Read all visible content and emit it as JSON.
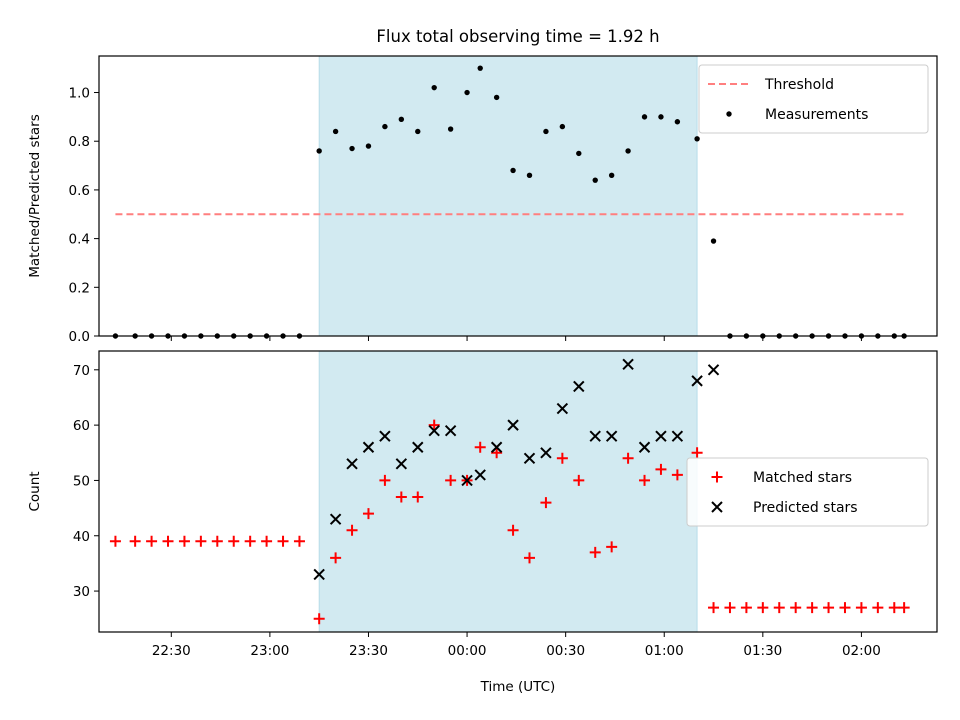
{
  "figure": {
    "title": "Flux total observing time = 1.92 h",
    "xlabel": "Time (UTC)"
  },
  "chart_data": [
    {
      "type": "scatter",
      "title": "Flux total observing time = 1.92 h",
      "xlabel": "",
      "ylabel": "Matched/Predicted stars",
      "xlim": [
        "22:08",
        "02:23"
      ],
      "ylim": [
        0,
        1.15
      ],
      "x_tick_labels": [
        "22:30",
        "23:00",
        "23:30",
        "00:00",
        "00:30",
        "01:00",
        "01:30",
        "02:00"
      ],
      "y_ticks": [
        0.0,
        0.2,
        0.4,
        0.6,
        0.8,
        1.0
      ],
      "y_tick_labels": [
        "0.0",
        "0.2",
        "0.4",
        "0.6",
        "0.8",
        "1.0"
      ],
      "highlight_span": {
        "x_start": "23:15",
        "x_end": "01:10",
        "color": "#add8e6"
      },
      "threshold": {
        "name": "Threshold",
        "value": 0.5,
        "x_start": "22:13",
        "x_end": "02:13",
        "color": "#ff7f7f",
        "style": "dashed"
      },
      "legend_location": "top-right",
      "legend": [
        {
          "label": "Threshold",
          "marker": "dashed-line",
          "color": "#ff7f7f"
        },
        {
          "label": "Measurements",
          "marker": "dot",
          "color": "#000000"
        }
      ],
      "series": [
        {
          "name": "Measurements",
          "marker": "dot",
          "color": "#000000",
          "points": [
            [
              "22:13",
              0
            ],
            [
              "22:19",
              0
            ],
            [
              "22:24",
              0
            ],
            [
              "22:29",
              0
            ],
            [
              "22:34",
              0
            ],
            [
              "22:39",
              0
            ],
            [
              "22:44",
              0
            ],
            [
              "22:49",
              0
            ],
            [
              "22:54",
              0
            ],
            [
              "22:59",
              0
            ],
            [
              "23:04",
              0
            ],
            [
              "23:09",
              0
            ],
            [
              "23:15",
              0.76
            ],
            [
              "23:20",
              0.84
            ],
            [
              "23:25",
              0.77
            ],
            [
              "23:30",
              0.78
            ],
            [
              "23:35",
              0.86
            ],
            [
              "23:40",
              0.89
            ],
            [
              "23:45",
              0.84
            ],
            [
              "23:50",
              1.02
            ],
            [
              "23:55",
              0.85
            ],
            [
              "00:00",
              1.0
            ],
            [
              "00:04",
              1.1
            ],
            [
              "00:09",
              0.98
            ],
            [
              "00:14",
              0.68
            ],
            [
              "00:19",
              0.66
            ],
            [
              "00:24",
              0.84
            ],
            [
              "00:29",
              0.86
            ],
            [
              "00:34",
              0.75
            ],
            [
              "00:39",
              0.64
            ],
            [
              "00:44",
              0.66
            ],
            [
              "00:49",
              0.76
            ],
            [
              "00:54",
              0.9
            ],
            [
              "00:59",
              0.9
            ],
            [
              "01:04",
              0.88
            ],
            [
              "01:10",
              0.81
            ],
            [
              "01:15",
              0.39
            ],
            [
              "01:20",
              0
            ],
            [
              "01:25",
              0
            ],
            [
              "01:30",
              0
            ],
            [
              "01:35",
              0
            ],
            [
              "01:40",
              0
            ],
            [
              "01:45",
              0
            ],
            [
              "01:50",
              0
            ],
            [
              "01:55",
              0
            ],
            [
              "02:00",
              0
            ],
            [
              "02:05",
              0
            ],
            [
              "02:10",
              0
            ],
            [
              "02:13",
              0
            ]
          ]
        }
      ]
    },
    {
      "type": "scatter",
      "title": "",
      "xlabel": "Time (UTC)",
      "ylabel": "Count",
      "xlim": [
        "22:08",
        "02:23"
      ],
      "ylim": [
        22.6,
        73.4
      ],
      "x_tick_labels": [
        "22:30",
        "23:00",
        "23:30",
        "00:00",
        "00:30",
        "01:00",
        "01:30",
        "02:00"
      ],
      "y_ticks": [
        30,
        40,
        50,
        60,
        70
      ],
      "y_tick_labels": [
        "30",
        "40",
        "50",
        "60",
        "70"
      ],
      "highlight_span": {
        "x_start": "23:15",
        "x_end": "01:10",
        "color": "#add8e6"
      },
      "legend_location": "center-right",
      "legend": [
        {
          "label": "Matched stars",
          "marker": "plus",
          "color": "#ff0000"
        },
        {
          "label": "Predicted stars",
          "marker": "x",
          "color": "#000000"
        }
      ],
      "series": [
        {
          "name": "Matched stars",
          "marker": "plus",
          "color": "#ff0000",
          "points": [
            [
              "22:13",
              39
            ],
            [
              "22:19",
              39
            ],
            [
              "22:24",
              39
            ],
            [
              "22:29",
              39
            ],
            [
              "22:34",
              39
            ],
            [
              "22:39",
              39
            ],
            [
              "22:44",
              39
            ],
            [
              "22:49",
              39
            ],
            [
              "22:54",
              39
            ],
            [
              "22:59",
              39
            ],
            [
              "23:04",
              39
            ],
            [
              "23:09",
              39
            ],
            [
              "23:15",
              25
            ],
            [
              "23:20",
              36
            ],
            [
              "23:25",
              41
            ],
            [
              "23:30",
              44
            ],
            [
              "23:35",
              50
            ],
            [
              "23:40",
              47
            ],
            [
              "23:45",
              47
            ],
            [
              "23:50",
              60
            ],
            [
              "23:55",
              50
            ],
            [
              "00:00",
              50
            ],
            [
              "00:04",
              56
            ],
            [
              "00:09",
              55
            ],
            [
              "00:14",
              41
            ],
            [
              "00:19",
              36
            ],
            [
              "00:24",
              46
            ],
            [
              "00:29",
              54
            ],
            [
              "00:34",
              50
            ],
            [
              "00:39",
              37
            ],
            [
              "00:44",
              38
            ],
            [
              "00:49",
              54
            ],
            [
              "00:54",
              50
            ],
            [
              "00:59",
              52
            ],
            [
              "01:04",
              51
            ],
            [
              "01:10",
              55
            ],
            [
              "01:15",
              27
            ],
            [
              "01:20",
              27
            ],
            [
              "01:25",
              27
            ],
            [
              "01:30",
              27
            ],
            [
              "01:35",
              27
            ],
            [
              "01:40",
              27
            ],
            [
              "01:45",
              27
            ],
            [
              "01:50",
              27
            ],
            [
              "01:55",
              27
            ],
            [
              "02:00",
              27
            ],
            [
              "02:05",
              27
            ],
            [
              "02:10",
              27
            ],
            [
              "02:13",
              27
            ]
          ]
        },
        {
          "name": "Predicted stars",
          "marker": "x",
          "color": "#000000",
          "points": [
            [
              "23:15",
              33
            ],
            [
              "23:20",
              43
            ],
            [
              "23:25",
              53
            ],
            [
              "23:30",
              56
            ],
            [
              "23:35",
              58
            ],
            [
              "23:40",
              53
            ],
            [
              "23:45",
              56
            ],
            [
              "23:50",
              59
            ],
            [
              "23:55",
              59
            ],
            [
              "00:00",
              50
            ],
            [
              "00:04",
              51
            ],
            [
              "00:09",
              56
            ],
            [
              "00:14",
              60
            ],
            [
              "00:19",
              54
            ],
            [
              "00:24",
              55
            ],
            [
              "00:29",
              63
            ],
            [
              "00:34",
              67
            ],
            [
              "00:39",
              58
            ],
            [
              "00:44",
              58
            ],
            [
              "00:49",
              71
            ],
            [
              "00:54",
              56
            ],
            [
              "00:59",
              58
            ],
            [
              "01:04",
              58
            ],
            [
              "01:10",
              68
            ],
            [
              "01:15",
              70
            ]
          ]
        }
      ]
    }
  ]
}
